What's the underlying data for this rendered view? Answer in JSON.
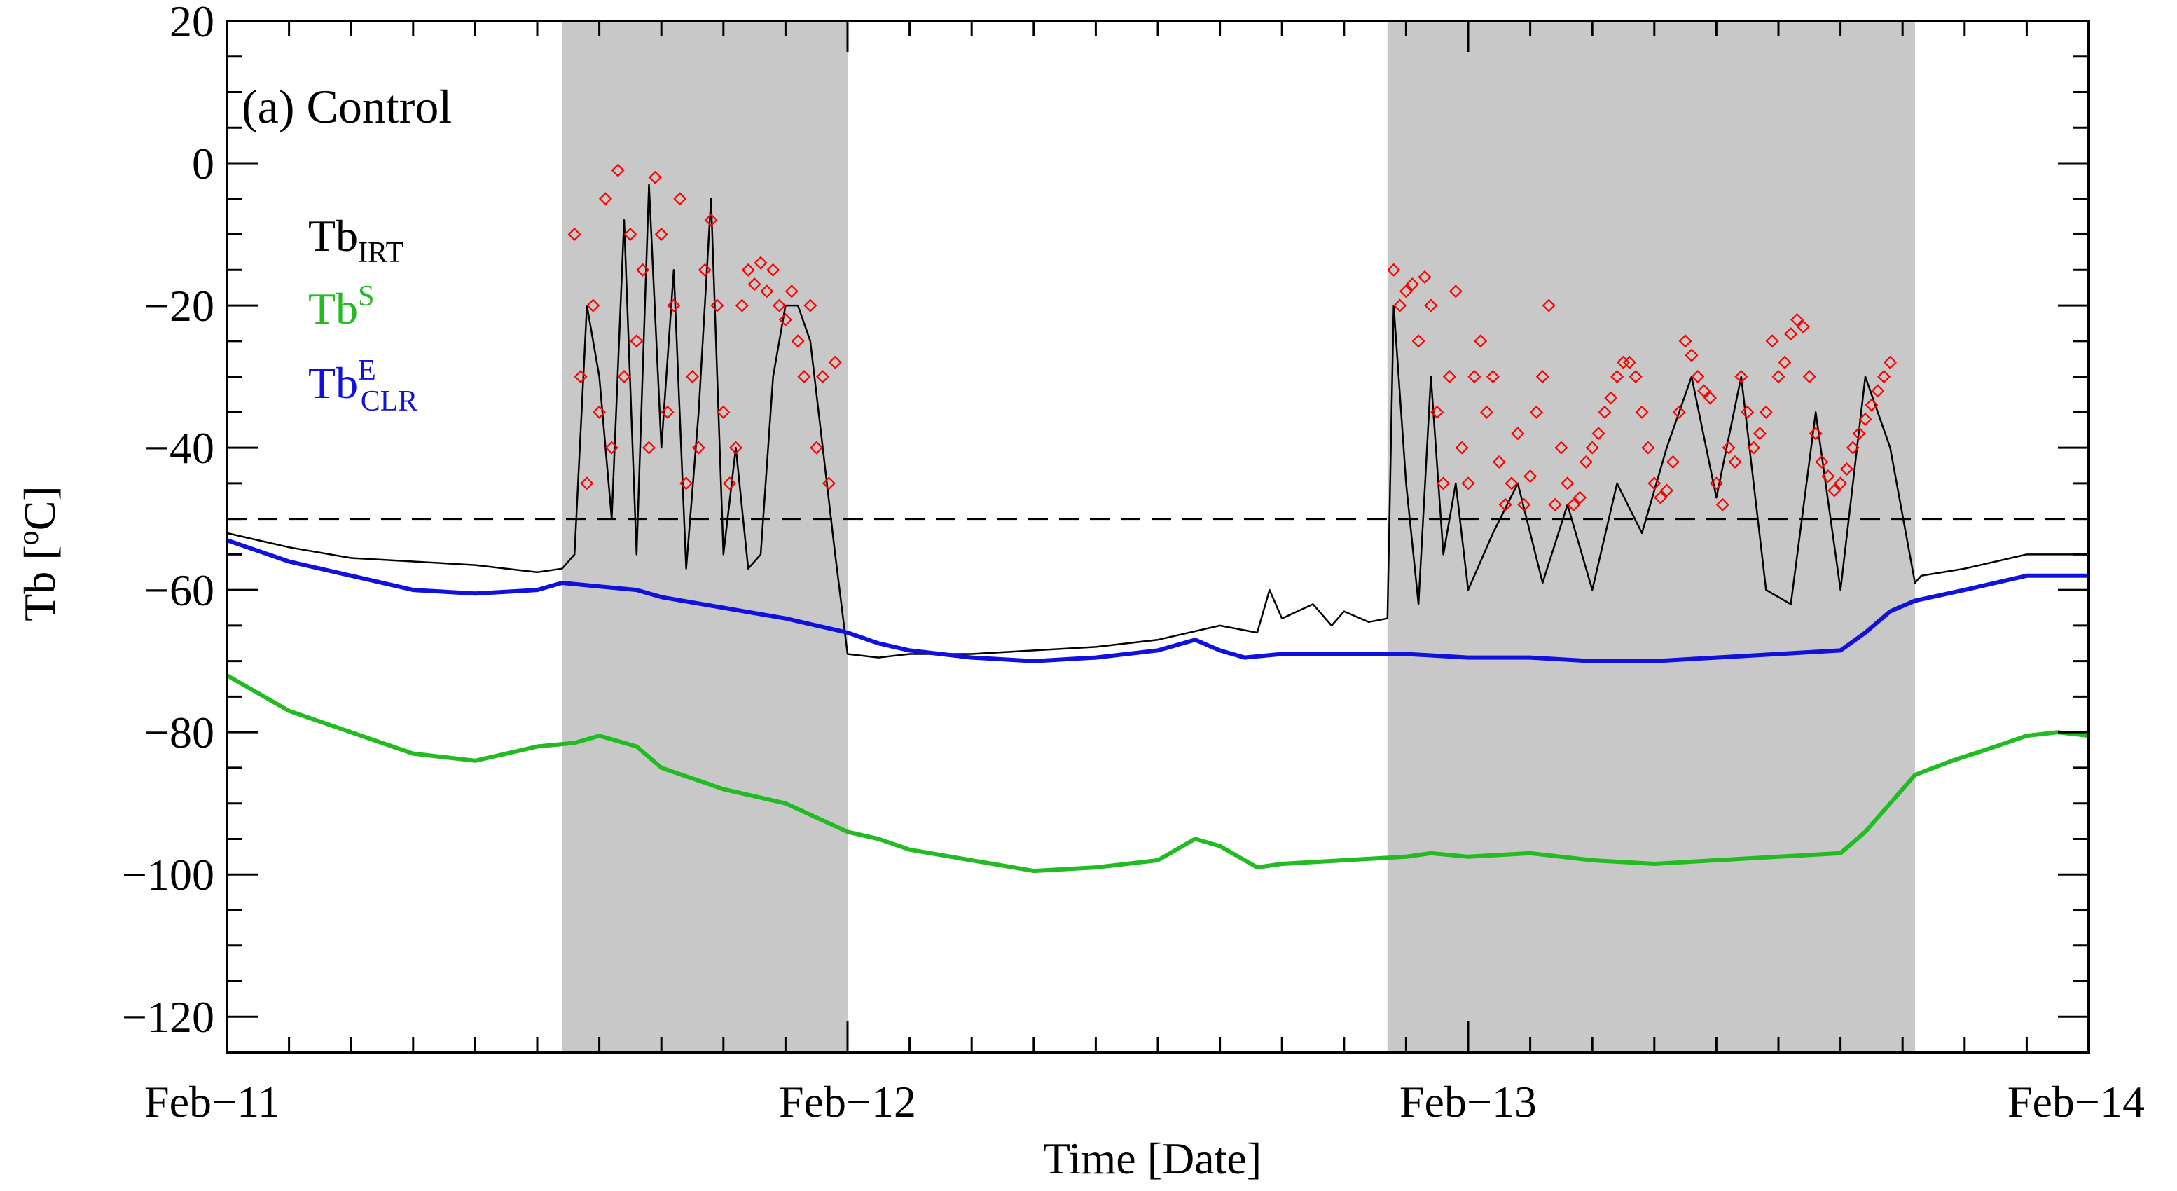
{
  "chart_data": {
    "type": "line",
    "title": "",
    "panel_label": "(a) Control",
    "xlabel": "Time [Date]",
    "ylabel_text": "Tb [",
    "ylabel_sup": "o",
    "ylabel_unit": "C]",
    "xlim": [
      0,
      3
    ],
    "ylim": [
      -125,
      20
    ],
    "x_tick_labels": [
      {
        "x": 0,
        "label": "Feb−11"
      },
      {
        "x": 1,
        "label": "Feb−12"
      },
      {
        "x": 2,
        "label": "Feb−13"
      },
      {
        "x": 3,
        "label": "Feb−14"
      }
    ],
    "y_tick_labels": [
      {
        "y": 20,
        "label": "20"
      },
      {
        "y": 0,
        "label": "0"
      },
      {
        "y": -20,
        "label": "−20"
      },
      {
        "y": -40,
        "label": "−40"
      },
      {
        "y": -60,
        "label": "−60"
      },
      {
        "y": -80,
        "label": "−80"
      },
      {
        "y": -100,
        "label": "−100"
      },
      {
        "y": -120,
        "label": "−120"
      }
    ],
    "x_minor_step_days": 0.1,
    "y_minor_step": 5,
    "threshold": {
      "y": -50,
      "style": "dashed"
    },
    "shaded_periods": [
      [
        0.54,
        1.0
      ],
      [
        1.87,
        2.72
      ]
    ],
    "legend": [
      {
        "name": "Tb",
        "sub": "IRT",
        "sup": "",
        "color": "#000000"
      },
      {
        "name": "Tb",
        "sub": "",
        "sup": "S",
        "color": "#22bb22"
      },
      {
        "name": "Tb",
        "sub": "CLR",
        "sup": "E",
        "color": "#1111dd"
      }
    ],
    "series": [
      {
        "name": "Tb_IRT",
        "color": "#000000",
        "x": [
          0,
          0.1,
          0.2,
          0.3,
          0.4,
          0.5,
          0.54,
          0.56,
          0.58,
          0.6,
          0.62,
          0.64,
          0.66,
          0.68,
          0.7,
          0.72,
          0.74,
          0.76,
          0.78,
          0.8,
          0.82,
          0.84,
          0.86,
          0.88,
          0.9,
          0.92,
          0.94,
          0.96,
          0.98,
          1.0,
          1.05,
          1.1,
          1.2,
          1.3,
          1.4,
          1.5,
          1.6,
          1.66,
          1.68,
          1.7,
          1.75,
          1.78,
          1.8,
          1.84,
          1.87,
          1.88,
          1.9,
          1.92,
          1.94,
          1.96,
          1.98,
          2.0,
          2.04,
          2.08,
          2.12,
          2.16,
          2.2,
          2.24,
          2.28,
          2.32,
          2.36,
          2.4,
          2.44,
          2.48,
          2.52,
          2.56,
          2.6,
          2.64,
          2.68,
          2.72,
          2.73,
          2.8,
          2.9,
          3.0
        ],
        "y": [
          -52,
          -54,
          -55.5,
          -56,
          -56.5,
          -57.5,
          -57,
          -55,
          -20,
          -30,
          -50,
          -8,
          -55,
          -3,
          -40,
          -15,
          -57,
          -35,
          -5,
          -55,
          -40,
          -57,
          -55,
          -30,
          -20,
          -20,
          -25,
          -40,
          -55,
          -69,
          -69.5,
          -69,
          -69,
          -68.5,
          -68,
          -67,
          -65,
          -66,
          -60,
          -64,
          -62,
          -65,
          -63,
          -64.5,
          -64,
          -20,
          -45,
          -62,
          -30,
          -55,
          -45,
          -60,
          -52,
          -45,
          -59,
          -48,
          -60,
          -45,
          -52,
          -40,
          -30,
          -47,
          -30,
          -60,
          -62,
          -35,
          -60,
          -30,
          -40,
          -59,
          -58,
          -57,
          -55,
          -55
        ]
      },
      {
        "name": "Tb_S",
        "color": "#22bb22",
        "x": [
          0,
          0.1,
          0.2,
          0.3,
          0.4,
          0.5,
          0.56,
          0.6,
          0.62,
          0.66,
          0.7,
          0.8,
          0.9,
          1.0,
          1.05,
          1.1,
          1.2,
          1.3,
          1.4,
          1.5,
          1.56,
          1.6,
          1.66,
          1.7,
          1.8,
          1.9,
          1.94,
          2.0,
          2.1,
          2.2,
          2.3,
          2.4,
          2.5,
          2.6,
          2.64,
          2.68,
          2.72,
          2.78,
          2.85,
          2.9,
          2.95,
          3.0
        ],
        "y": [
          -72,
          -77,
          -80,
          -83,
          -84,
          -82,
          -81.5,
          -80.5,
          -81,
          -82,
          -85,
          -88,
          -90,
          -94,
          -95,
          -96.5,
          -98,
          -99.5,
          -99,
          -98,
          -95,
          -96,
          -99,
          -98.5,
          -98,
          -97.5,
          -97,
          -97.5,
          -97,
          -98,
          -98.5,
          -98,
          -97.5,
          -97,
          -94,
          -90,
          -86,
          -84,
          -82,
          -80.5,
          -80,
          -80.5
        ]
      },
      {
        "name": "Tb_E_CLR",
        "color": "#1111dd",
        "x": [
          0,
          0.1,
          0.2,
          0.3,
          0.4,
          0.5,
          0.54,
          0.6,
          0.66,
          0.7,
          0.8,
          0.9,
          1.0,
          1.05,
          1.1,
          1.2,
          1.3,
          1.4,
          1.5,
          1.56,
          1.6,
          1.64,
          1.7,
          1.8,
          1.9,
          2.0,
          2.1,
          2.2,
          2.3,
          2.4,
          2.5,
          2.6,
          2.64,
          2.68,
          2.72,
          2.8,
          2.9,
          3.0
        ],
        "y": [
          -53,
          -56,
          -58,
          -60,
          -60.5,
          -60,
          -59,
          -59.5,
          -60,
          -61,
          -62.5,
          -64,
          -66,
          -67.5,
          -68.5,
          -69.5,
          -70,
          -69.5,
          -68.5,
          -67,
          -68.5,
          -69.5,
          -69,
          -69,
          -69,
          -69.5,
          -69.5,
          -70,
          -70,
          -69.5,
          -69,
          -68.5,
          -66,
          -63,
          -61.5,
          -60,
          -58,
          -58
        ]
      }
    ],
    "marker_series": {
      "name": "cloud_flags",
      "color": "#ff0000",
      "marker": "diamond",
      "x": [
        0.56,
        0.57,
        0.58,
        0.59,
        0.6,
        0.61,
        0.62,
        0.63,
        0.64,
        0.65,
        0.66,
        0.67,
        0.68,
        0.69,
        0.7,
        0.71,
        0.72,
        0.73,
        0.74,
        0.75,
        0.76,
        0.77,
        0.78,
        0.79,
        0.8,
        0.81,
        0.82,
        0.83,
        0.84,
        0.85,
        0.86,
        0.87,
        0.88,
        0.89,
        0.9,
        0.91,
        0.92,
        0.93,
        0.94,
        0.95,
        0.96,
        0.97,
        0.98,
        1.88,
        1.89,
        1.9,
        1.91,
        1.92,
        1.93,
        1.94,
        1.95,
        1.96,
        1.97,
        1.98,
        1.99,
        2.0,
        2.01,
        2.02,
        2.03,
        2.04,
        2.05,
        2.06,
        2.07,
        2.08,
        2.09,
        2.1,
        2.11,
        2.12,
        2.13,
        2.14,
        2.15,
        2.16,
        2.17,
        2.18,
        2.19,
        2.2,
        2.21,
        2.22,
        2.23,
        2.24,
        2.25,
        2.26,
        2.27,
        2.28,
        2.29,
        2.3,
        2.31,
        2.32,
        2.33,
        2.34,
        2.35,
        2.36,
        2.37,
        2.38,
        2.39,
        2.4,
        2.41,
        2.42,
        2.43,
        2.44,
        2.45,
        2.46,
        2.47,
        2.48,
        2.49,
        2.5,
        2.51,
        2.52,
        2.53,
        2.54,
        2.55,
        2.56,
        2.57,
        2.58,
        2.59,
        2.6,
        2.61,
        2.62,
        2.63,
        2.64,
        2.65,
        2.66,
        2.67,
        2.68
      ],
      "y": [
        -10,
        -30,
        -45,
        -20,
        -35,
        -5,
        -40,
        -1,
        -30,
        -10,
        -25,
        -15,
        -40,
        -2,
        -10,
        -35,
        -20,
        -5,
        -45,
        -30,
        -40,
        -15,
        -8,
        -20,
        -35,
        -45,
        -40,
        -20,
        -15,
        -17,
        -14,
        -18,
        -15,
        -20,
        -22,
        -18,
        -25,
        -30,
        -20,
        -40,
        -30,
        -45,
        -28,
        -15,
        -20,
        -18,
        -17,
        -25,
        -16,
        -20,
        -35,
        -45,
        -30,
        -18,
        -40,
        -45,
        -30,
        -25,
        -35,
        -30,
        -42,
        -48,
        -45,
        -38,
        -48,
        -44,
        -35,
        -30,
        -20,
        -48,
        -40,
        -45,
        -48,
        -47,
        -42,
        -40,
        -38,
        -35,
        -33,
        -30,
        -28,
        -28,
        -30,
        -35,
        -40,
        -45,
        -47,
        -46,
        -42,
        -35,
        -25,
        -27,
        -30,
        -32,
        -33,
        -45,
        -48,
        -40,
        -42,
        -30,
        -35,
        -40,
        -38,
        -35,
        -25,
        -30,
        -28,
        -24,
        -22,
        -23,
        -30,
        -38,
        -42,
        -44,
        -46,
        -45,
        -43,
        -40,
        -38,
        -36,
        -34,
        -32,
        -30,
        -28
      ]
    }
  }
}
